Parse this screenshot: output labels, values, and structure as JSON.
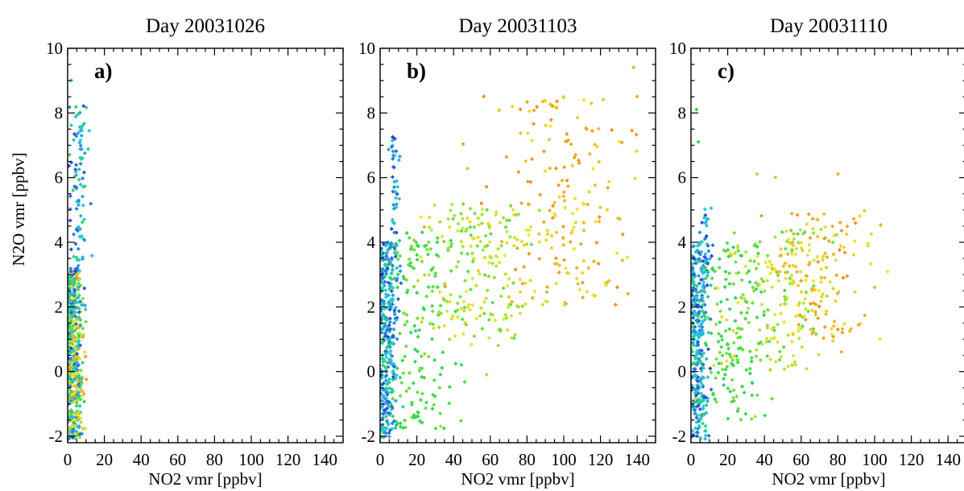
{
  "figure": {
    "y_axis_label": "N2O vmr [ppbv]",
    "x_axis_label": "NO2 vmr [ppbv]"
  },
  "chart_data": [
    {
      "type": "scatter",
      "title": "Day 20031026",
      "panel_label": "a)",
      "xlabel": "NO2 vmr [ppbv]",
      "ylabel": "N2O vmr [ppbv]",
      "xlim": [
        0,
        150
      ],
      "ylim": [
        -2.2,
        10
      ],
      "x_ticks": [
        0,
        20,
        40,
        60,
        80,
        100,
        120,
        140
      ],
      "y_ticks": [
        -2,
        0,
        2,
        4,
        6,
        8,
        10
      ],
      "color_scale": [
        "#2a3fd6",
        "#27c6e8",
        "#2fd84a",
        "#e8e82b",
        "#f08a1c"
      ],
      "clusters": [
        {
          "x_mean": 3,
          "x_sd": 2.5,
          "y_min": -2.1,
          "y_max": 3.2,
          "n": 520,
          "color_range": [
            0,
            1
          ]
        },
        {
          "x_mean": 6,
          "x_sd": 2.5,
          "y_min": 3,
          "y_max": 8.3,
          "n": 90,
          "color_range": [
            0,
            0.45
          ]
        }
      ],
      "outliers": [
        [
          2,
          9
        ],
        [
          1,
          6.7
        ],
        [
          3,
          5.6
        ]
      ]
    },
    {
      "type": "scatter",
      "title": "Day 20031103",
      "panel_label": "b)",
      "xlabel": "NO2 vmr [ppbv]",
      "ylabel": "",
      "xlim": [
        0,
        150
      ],
      "ylim": [
        -2.2,
        10
      ],
      "x_ticks": [
        0,
        20,
        40,
        60,
        80,
        100,
        120,
        140
      ],
      "y_ticks": [
        -2,
        0,
        2,
        4,
        6,
        8,
        10
      ],
      "color_scale": [
        "#2a3fd6",
        "#27c6e8",
        "#2fd84a",
        "#e8e82b",
        "#f08a1c"
      ],
      "clusters": [
        {
          "x_mean": 4,
          "x_sd": 3,
          "y_min": -2.1,
          "y_max": 4,
          "n": 320,
          "color_range": [
            0,
            0.45
          ]
        },
        {
          "x_mean": 8,
          "x_sd": 1.5,
          "y_min": 3,
          "y_max": 7.3,
          "n": 45,
          "color_range": [
            0,
            0.35
          ]
        },
        {
          "x_mean": 22,
          "x_sd": 9,
          "y_min": -1.8,
          "y_max": 4.3,
          "n": 150,
          "color_range": [
            0.45,
            0.62
          ]
        },
        {
          "x_mean": 52,
          "x_sd": 15,
          "y_min": 0.8,
          "y_max": 5.2,
          "n": 190,
          "color_range": [
            0.55,
            0.82
          ]
        },
        {
          "x_mean": 100,
          "x_sd": 22,
          "y_min": 2,
          "y_max": 8.5,
          "n": 200,
          "color_range": [
            0.72,
            1
          ]
        }
      ],
      "outliers": [
        [
          138,
          9.4
        ],
        [
          140,
          8.5
        ],
        [
          58,
          -0.1
        ],
        [
          33,
          -1.7
        ],
        [
          135,
          2.4
        ]
      ]
    },
    {
      "type": "scatter",
      "title": "Day 20031110",
      "panel_label": "c)",
      "xlabel": "NO2 vmr [ppbv]",
      "ylabel": "",
      "xlim": [
        0,
        150
      ],
      "ylim": [
        -2.2,
        10
      ],
      "x_ticks": [
        0,
        20,
        40,
        60,
        80,
        100,
        120,
        140
      ],
      "y_ticks": [
        -2,
        0,
        2,
        4,
        6,
        8,
        10
      ],
      "color_scale": [
        "#2a3fd6",
        "#27c6e8",
        "#2fd84a",
        "#e8e82b",
        "#f08a1c"
      ],
      "clusters": [
        {
          "x_mean": 4,
          "x_sd": 3,
          "y_min": -2.1,
          "y_max": 4,
          "n": 300,
          "color_range": [
            0,
            0.45
          ]
        },
        {
          "x_mean": 8,
          "x_sd": 1.5,
          "y_min": 3,
          "y_max": 5.1,
          "n": 30,
          "color_range": [
            0,
            0.3
          ]
        },
        {
          "x_mean": 22,
          "x_sd": 9,
          "y_min": -1.5,
          "y_max": 4,
          "n": 140,
          "color_range": [
            0.45,
            0.62
          ]
        },
        {
          "x_mean": 48,
          "x_sd": 14,
          "y_min": 0,
          "y_max": 4.4,
          "n": 170,
          "color_range": [
            0.55,
            0.82
          ]
        },
        {
          "x_mean": 70,
          "x_sd": 14,
          "y_min": 1,
          "y_max": 5,
          "n": 130,
          "color_range": [
            0.72,
            1
          ]
        }
      ],
      "outliers": [
        [
          3,
          8.1
        ],
        [
          4,
          7.1
        ],
        [
          36,
          6.1
        ],
        [
          46,
          6
        ],
        [
          80,
          6.1
        ],
        [
          100,
          2.6
        ],
        [
          82,
          0.6
        ],
        [
          35,
          -1.4
        ]
      ]
    }
  ]
}
